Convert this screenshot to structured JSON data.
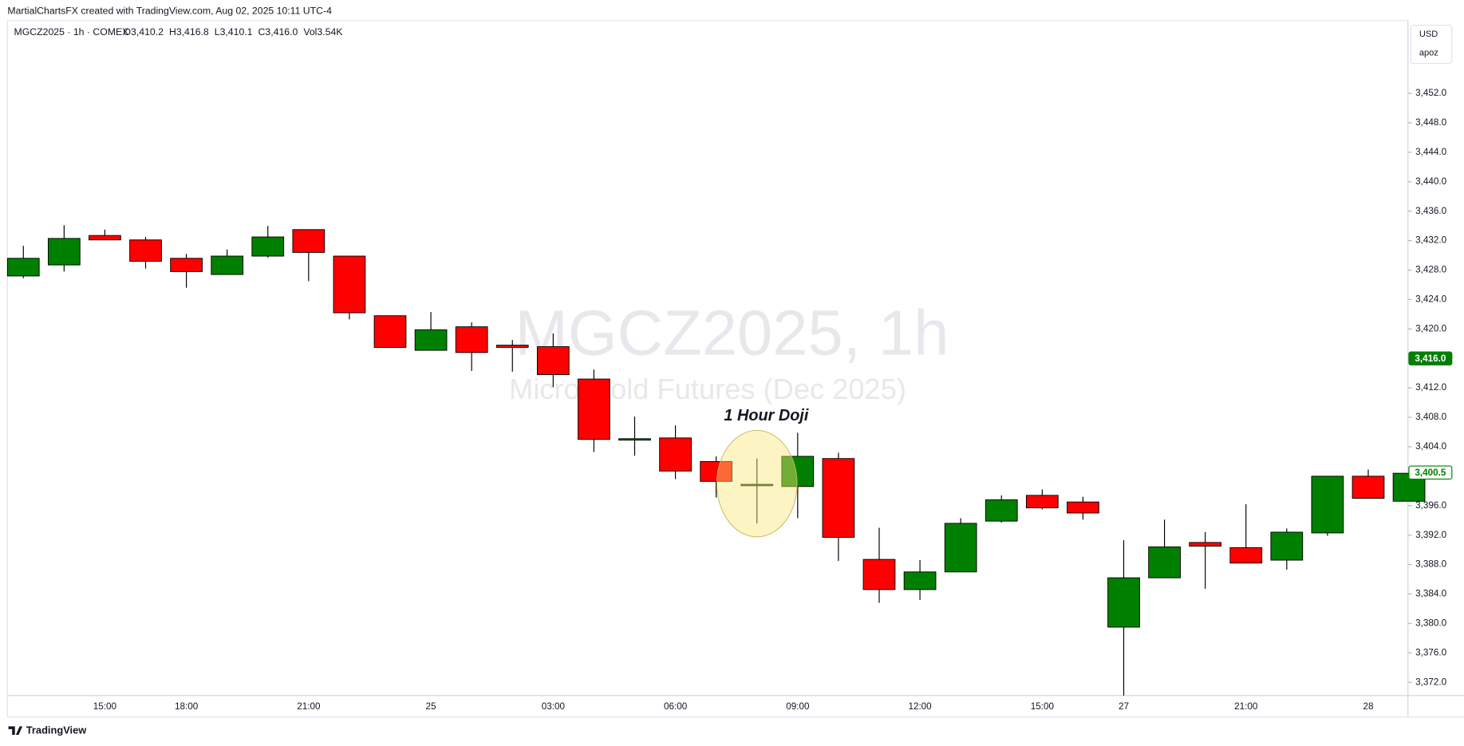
{
  "chart_data": {
    "type": "candlestick",
    "credit": "MartialChartsFX created with TradingView.com, Aug 02, 2025 10:11 UTC-4",
    "symbol_info": "MGCZ2025 · 1h · COMEX",
    "ohlc_info": [
      "O3,410.2",
      "H3,416.8",
      "L3,410.1",
      "C3,416.0",
      "Vol3.54K"
    ],
    "currency": "USD",
    "axis_menu": "apoz",
    "title": "MGCZ2025, 1h",
    "subtitle": "Micro Gold Futures (Dec 2025)",
    "annotation": {
      "text": "1 Hour Doji",
      "index": 18
    },
    "brand": "TradingView",
    "up_color": "#008000",
    "down_color": "#ff0000",
    "categories": [
      null,
      null,
      "15:00",
      null,
      "18:00",
      null,
      null,
      "21:00",
      null,
      null,
      "25",
      null,
      null,
      "03:00",
      null,
      null,
      "06:00",
      null,
      null,
      "09:00",
      null,
      null,
      "12:00",
      null,
      null,
      "15:00",
      null,
      "27",
      null,
      null,
      "21:00",
      null,
      null,
      "28",
      null
    ],
    "open": [
      3427.2,
      3428.7,
      3432.7,
      3432.1,
      3429.6,
      3427.4,
      3429.9,
      3433.5,
      3429.9,
      3421.8,
      3417.1,
      3420.3,
      3417.8,
      3417.6,
      3413.2,
      3404.9,
      3405.2,
      3402.0,
      3398.9,
      3398.6,
      3402.4,
      3388.7,
      3384.6,
      3387.0,
      3393.9,
      3397.4,
      3396.5,
      3379.5,
      3386.2,
      3391.0,
      3390.3,
      3388.6,
      3392.3,
      3400.0,
      3396.6
    ],
    "high": [
      3431.3,
      3434.1,
      3433.5,
      3432.5,
      3430.2,
      3430.8,
      3434.0,
      3433.5,
      3429.9,
      3421.8,
      3422.3,
      3420.9,
      3418.5,
      3419.4,
      3414.5,
      3408.1,
      3406.9,
      3402.7,
      3402.4,
      3405.9,
      3403.2,
      3393.0,
      3388.6,
      3394.3,
      3397.4,
      3398.2,
      3397.2,
      3391.3,
      3394.1,
      3392.4,
      3396.2,
      3392.9,
      3400.0,
      3400.9,
      3400.5
    ],
    "low": [
      3426.9,
      3427.8,
      3432.1,
      3428.2,
      3425.6,
      3427.4,
      3429.7,
      3426.5,
      3421.3,
      3417.5,
      3417.1,
      3414.3,
      3414.2,
      3412.1,
      3403.3,
      3402.8,
      3399.6,
      3397.1,
      3393.6,
      3394.3,
      3388.5,
      3382.8,
      3383.2,
      3387.0,
      3393.7,
      3395.5,
      3394.1,
      3370.2,
      3386.2,
      3384.7,
      3388.2,
      3387.3,
      3391.9,
      3397.0,
      3396.6
    ],
    "close": [
      3429.6,
      3432.3,
      3432.1,
      3429.2,
      3427.8,
      3429.9,
      3432.5,
      3430.4,
      3422.2,
      3417.5,
      3419.9,
      3416.8,
      3417.5,
      3413.8,
      3405.0,
      3405.1,
      3400.7,
      3399.3,
      3398.9,
      3402.7,
      3391.7,
      3384.6,
      3387.0,
      3393.6,
      3396.8,
      3395.7,
      3395.0,
      3386.2,
      3390.4,
      3390.5,
      3388.2,
      3392.4,
      3400.0,
      3397.0,
      3400.4
    ],
    "ylim": [
      3370.2,
      3461.9
    ],
    "yticks": [
      {
        "value": 3372,
        "label": "3,372.0"
      },
      {
        "value": 3376,
        "label": "3,376.0"
      },
      {
        "value": 3380,
        "label": "3,380.0"
      },
      {
        "value": 3384,
        "label": "3,384.0"
      },
      {
        "value": 3388,
        "label": "3,388.0"
      },
      {
        "value": 3392,
        "label": "3,392.0"
      },
      {
        "value": 3396,
        "label": "3,396.0"
      },
      {
        "value": 3400,
        "label": "3,400.0"
      },
      {
        "value": 3404,
        "label": "3,404.0"
      },
      {
        "value": 3408,
        "label": "3,408.0"
      },
      {
        "value": 3412,
        "label": "3,412.0"
      },
      {
        "value": 3416,
        "label": "3,416.0"
      },
      {
        "value": 3420,
        "label": "3,420.0"
      },
      {
        "value": 3424,
        "label": "3,424.0"
      },
      {
        "value": 3428,
        "label": "3,428.0"
      },
      {
        "value": 3432,
        "label": "3,432.0"
      },
      {
        "value": 3436,
        "label": "3,436.0"
      },
      {
        "value": 3440,
        "label": "3,440.0"
      },
      {
        "value": 3444,
        "label": "3,444.0"
      },
      {
        "value": 3448,
        "label": "3,448.0"
      },
      {
        "value": 3452,
        "label": "3,452.0"
      }
    ],
    "price_labels": [
      {
        "value": 3416.0,
        "label": "3,416.0",
        "filled": true
      },
      {
        "value": 3400.5,
        "label": "3,400.5",
        "filled": false
      }
    ]
  }
}
